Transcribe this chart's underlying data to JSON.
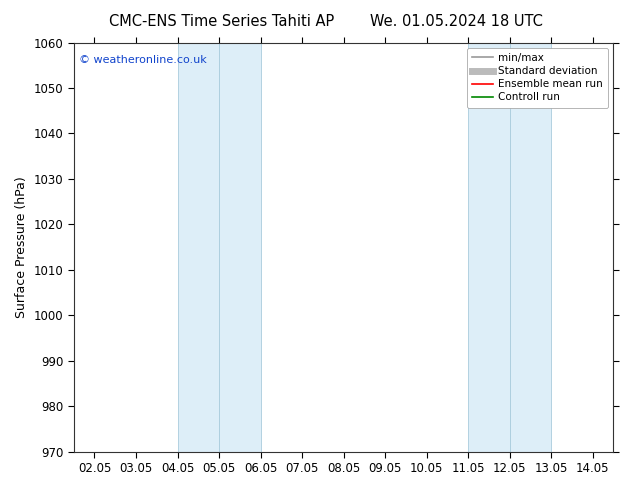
{
  "title_left": "CMC-ENS Time Series Tahiti AP",
  "title_right": "We. 01.05.2024 18 UTC",
  "ylabel": "Surface Pressure (hPa)",
  "ylim": [
    970,
    1060
  ],
  "yticks": [
    970,
    980,
    990,
    1000,
    1010,
    1020,
    1030,
    1040,
    1050,
    1060
  ],
  "xtick_labels": [
    "02.05",
    "03.05",
    "04.05",
    "05.05",
    "06.05",
    "07.05",
    "08.05",
    "09.05",
    "10.05",
    "11.05",
    "12.05",
    "13.05",
    "14.05"
  ],
  "shade_color": "#ddeef8",
  "shade_edge_color": "#aaccdd",
  "background_color": "#ffffff",
  "watermark": "© weatheronline.co.uk",
  "legend_items": [
    {
      "label": "min/max",
      "color": "#999999",
      "lw": 1.2
    },
    {
      "label": "Standard deviation",
      "color": "#bbbbbb",
      "lw": 5
    },
    {
      "label": "Ensemble mean run",
      "color": "#ff0000",
      "lw": 1.2
    },
    {
      "label": "Controll run",
      "color": "#008800",
      "lw": 1.2
    }
  ],
  "title_fontsize": 10.5,
  "ylabel_fontsize": 9,
  "tick_fontsize": 8.5,
  "watermark_fontsize": 8,
  "legend_fontsize": 7.5
}
